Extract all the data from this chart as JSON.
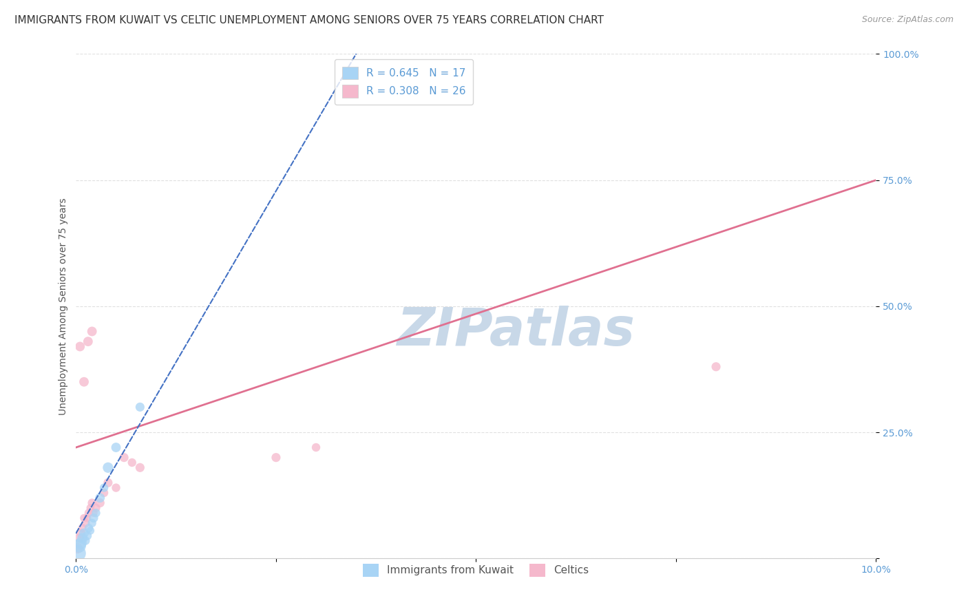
{
  "title": "IMMIGRANTS FROM KUWAIT VS CELTIC UNEMPLOYMENT AMONG SENIORS OVER 75 YEARS CORRELATION CHART",
  "source": "Source: ZipAtlas.com",
  "ylabel": "Unemployment Among Seniors over 75 years",
  "xlim": [
    0.0,
    10.0
  ],
  "ylim": [
    0.0,
    100.0
  ],
  "legend_entries": [
    {
      "label": "Immigrants from Kuwait",
      "R": 0.645,
      "N": 17,
      "color": "#a8d4f5"
    },
    {
      "label": "Celtics",
      "R": 0.308,
      "N": 26,
      "color": "#f5b8cc"
    }
  ],
  "blue_scatter": [
    [
      0.02,
      1.0
    ],
    [
      0.04,
      2.5
    ],
    [
      0.06,
      3.0
    ],
    [
      0.08,
      4.0
    ],
    [
      0.1,
      5.0
    ],
    [
      0.12,
      3.5
    ],
    [
      0.14,
      4.5
    ],
    [
      0.16,
      6.0
    ],
    [
      0.18,
      5.5
    ],
    [
      0.2,
      7.0
    ],
    [
      0.22,
      8.0
    ],
    [
      0.25,
      9.0
    ],
    [
      0.3,
      12.0
    ],
    [
      0.35,
      14.0
    ],
    [
      0.4,
      18.0
    ],
    [
      0.5,
      22.0
    ],
    [
      0.8,
      30.0
    ]
  ],
  "blue_scatter_sizes": [
    300,
    200,
    150,
    120,
    100,
    80,
    90,
    80,
    70,
    80,
    90,
    80,
    100,
    80,
    120,
    100,
    90
  ],
  "pink_scatter": [
    [
      0.02,
      2.0
    ],
    [
      0.04,
      4.0
    ],
    [
      0.06,
      5.0
    ],
    [
      0.08,
      6.0
    ],
    [
      0.1,
      8.0
    ],
    [
      0.12,
      7.0
    ],
    [
      0.14,
      8.0
    ],
    [
      0.16,
      9.0
    ],
    [
      0.18,
      10.0
    ],
    [
      0.2,
      11.0
    ],
    [
      0.22,
      9.0
    ],
    [
      0.25,
      10.0
    ],
    [
      0.3,
      11.0
    ],
    [
      0.35,
      13.0
    ],
    [
      0.4,
      15.0
    ],
    [
      0.5,
      14.0
    ],
    [
      0.6,
      20.0
    ],
    [
      0.7,
      19.0
    ],
    [
      0.8,
      18.0
    ],
    [
      0.1,
      35.0
    ],
    [
      0.15,
      43.0
    ],
    [
      0.2,
      45.0
    ],
    [
      0.05,
      42.0
    ],
    [
      2.5,
      20.0
    ],
    [
      3.0,
      22.0
    ],
    [
      8.0,
      38.0
    ]
  ],
  "pink_scatter_sizes": [
    120,
    100,
    90,
    80,
    70,
    80,
    70,
    80,
    70,
    80,
    70,
    80,
    90,
    80,
    90,
    80,
    90,
    80,
    90,
    100,
    100,
    100,
    100,
    90,
    80,
    90
  ],
  "blue_trend_x": [
    0.0,
    3.5
  ],
  "blue_trend_y": [
    5.0,
    100.0
  ],
  "pink_trend_x": [
    0.0,
    10.0
  ],
  "pink_trend_y": [
    22.0,
    75.0
  ],
  "watermark": "ZIPatlas",
  "watermark_color": "#c8d8e8",
  "bg_color": "#ffffff",
  "grid_color": "#dddddd",
  "blue_line_color": "#4472c4",
  "pink_line_color": "#e07090",
  "blue_scatter_color": "#a8d4f5",
  "pink_scatter_color": "#f5b8cc",
  "tick_color": "#5b9bd5",
  "ylabel_color": "#555555",
  "title_color": "#333333",
  "title_fontsize": 11,
  "source_fontsize": 9,
  "axis_label_fontsize": 10,
  "tick_fontsize": 10,
  "legend_fontsize": 11
}
